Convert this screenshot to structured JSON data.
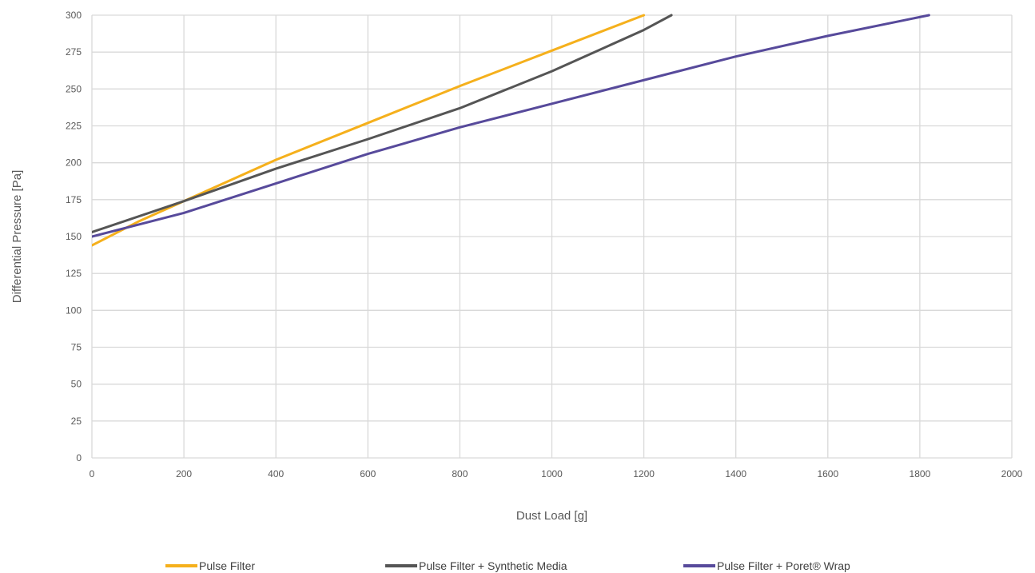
{
  "chart_data": {
    "type": "line",
    "title": "",
    "xlabel": "Dust Load [g]",
    "ylabel": "Differential Pressure [Pa]",
    "xlim": [
      0,
      2000
    ],
    "ylim": [
      0,
      300
    ],
    "x_ticks": [
      0,
      200,
      400,
      600,
      800,
      1000,
      1200,
      1400,
      1600,
      1800,
      2000
    ],
    "y_ticks": [
      0,
      25,
      50,
      75,
      100,
      125,
      150,
      175,
      200,
      225,
      250,
      275,
      300
    ],
    "grid": true,
    "legend_position": "bottom",
    "series": [
      {
        "name": "Pulse Filter",
        "color": "#F5B01C",
        "points": [
          [
            0,
            144
          ],
          [
            100,
            160
          ],
          [
            200,
            174
          ],
          [
            400,
            202
          ],
          [
            600,
            227
          ],
          [
            800,
            252
          ],
          [
            1000,
            276
          ],
          [
            1200,
            300
          ]
        ]
      },
      {
        "name": "Pulse Filter + Synthetic Media",
        "color": "#555555",
        "points": [
          [
            0,
            153
          ],
          [
            200,
            174
          ],
          [
            400,
            196
          ],
          [
            600,
            216
          ],
          [
            800,
            237
          ],
          [
            1000,
            262
          ],
          [
            1100,
            276
          ],
          [
            1200,
            290
          ],
          [
            1260,
            300
          ]
        ]
      },
      {
        "name": "Pulse Filter + Poret® Wrap",
        "color": "#574A9B",
        "points": [
          [
            0,
            150
          ],
          [
            200,
            166
          ],
          [
            400,
            186
          ],
          [
            600,
            206
          ],
          [
            800,
            224
          ],
          [
            1000,
            240
          ],
          [
            1200,
            256
          ],
          [
            1400,
            272
          ],
          [
            1600,
            286
          ],
          [
            1820,
            300
          ]
        ]
      }
    ]
  }
}
